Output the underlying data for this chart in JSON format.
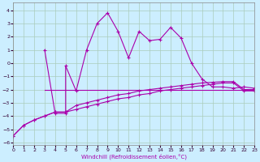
{
  "background_color": "#cceeff",
  "grid_color": "#aaccbb",
  "line_color": "#aa00aa",
  "xlabel": "Windchill (Refroidissement éolien,°C)",
  "xlim": [
    0,
    23
  ],
  "ylim": [
    -6.2,
    4.6
  ],
  "xticks": [
    0,
    1,
    2,
    3,
    4,
    5,
    6,
    7,
    8,
    9,
    10,
    11,
    12,
    13,
    14,
    15,
    16,
    17,
    18,
    19,
    20,
    21,
    22,
    23
  ],
  "yticks": [
    -6,
    -5,
    -4,
    -3,
    -2,
    -1,
    0,
    1,
    2,
    3,
    4
  ],
  "curve1_x": [
    0,
    1,
    2,
    3,
    4,
    5,
    6,
    7,
    8,
    9,
    10,
    11,
    12,
    13,
    14,
    15,
    16,
    17,
    18,
    19,
    20,
    21,
    22,
    23
  ],
  "curve1_y": [
    -5.5,
    -4.7,
    -4.3,
    -4.0,
    -3.7,
    -3.7,
    -3.5,
    -3.3,
    -3.1,
    -2.9,
    -2.7,
    -2.6,
    -2.4,
    -2.3,
    -2.1,
    -2.0,
    -1.9,
    -1.8,
    -1.7,
    -1.6,
    -1.5,
    -1.5,
    -2.1,
    -2.1
  ],
  "curve2_x": [
    0,
    1,
    2,
    3,
    4,
    5,
    6,
    7,
    8,
    9,
    10,
    11,
    12,
    13,
    14,
    15,
    16,
    17,
    18,
    19,
    20,
    21,
    22,
    23
  ],
  "curve2_y": [
    -5.5,
    -4.7,
    -4.3,
    -4.0,
    -3.7,
    -3.7,
    -3.2,
    -3.0,
    -2.8,
    -2.6,
    -2.4,
    -2.3,
    -2.1,
    -2.0,
    -1.9,
    -1.8,
    -1.7,
    -1.6,
    -1.5,
    -1.45,
    -1.4,
    -1.4,
    -2.0,
    -2.0
  ],
  "curve3_x": [
    3,
    4,
    5,
    5,
    6,
    7,
    8,
    9,
    10,
    11,
    12,
    13,
    14,
    15,
    16,
    17,
    18,
    19,
    20,
    21,
    22,
    23
  ],
  "curve3_y": [
    1.0,
    -3.8,
    -3.8,
    -0.2,
    -2.1,
    1.0,
    3.0,
    3.8,
    2.4,
    0.4,
    2.4,
    1.7,
    1.8,
    2.7,
    1.9,
    0.0,
    -1.2,
    -1.8,
    -1.8,
    -1.9,
    -1.8,
    -1.9
  ],
  "hline_x": [
    3,
    23
  ],
  "hline_y": [
    -2.0,
    -2.0
  ]
}
